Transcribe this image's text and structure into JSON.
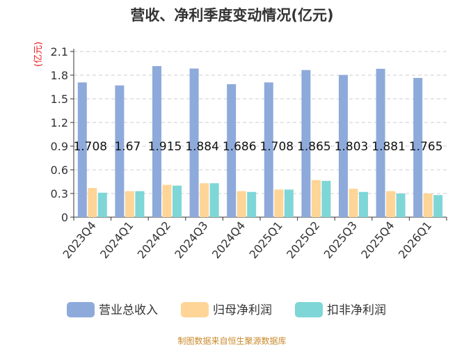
{
  "title": "营收、净利季度变动情况(亿元)",
  "unit_label": "(亿元)",
  "source": "制图数据来自恒生聚源数据库",
  "colors": {
    "revenue": "#8eaadb",
    "net_profit": "#fed597",
    "deducted_profit": "#7fd6d6",
    "unit": "#e8141a",
    "source": "#c98a2b"
  },
  "chart_data": {
    "type": "bar",
    "categories": [
      "2023Q4",
      "2024Q1",
      "2024Q2",
      "2024Q3",
      "2024Q4",
      "2025Q1",
      "2025Q2",
      "2025Q3",
      "2025Q4",
      "2026Q1"
    ],
    "ylim": [
      0,
      2.1
    ],
    "yticks": [
      "0",
      "0.3",
      "0.6",
      "0.9",
      "1.2",
      "1.5",
      "1.8",
      "2.1"
    ],
    "grid": true,
    "legend_position": "bottom",
    "series": [
      {
        "name": "营业总收入",
        "values": [
          1.708,
          1.67,
          1.915,
          1.884,
          1.686,
          1.708,
          1.865,
          1.803,
          1.881,
          1.765
        ],
        "labels": [
          "1.708",
          "1.67",
          "1.915",
          "1.884",
          "1.686",
          "1.708",
          "1.865",
          "1.803",
          "1.881",
          "1.765"
        ]
      },
      {
        "name": "归母净利润",
        "values": [
          0.37,
          0.33,
          0.41,
          0.43,
          0.33,
          0.35,
          0.47,
          0.36,
          0.33,
          0.3
        ]
      },
      {
        "name": "扣非净利润",
        "values": [
          0.31,
          0.33,
          0.4,
          0.43,
          0.32,
          0.35,
          0.46,
          0.32,
          0.3,
          0.28
        ]
      }
    ]
  }
}
